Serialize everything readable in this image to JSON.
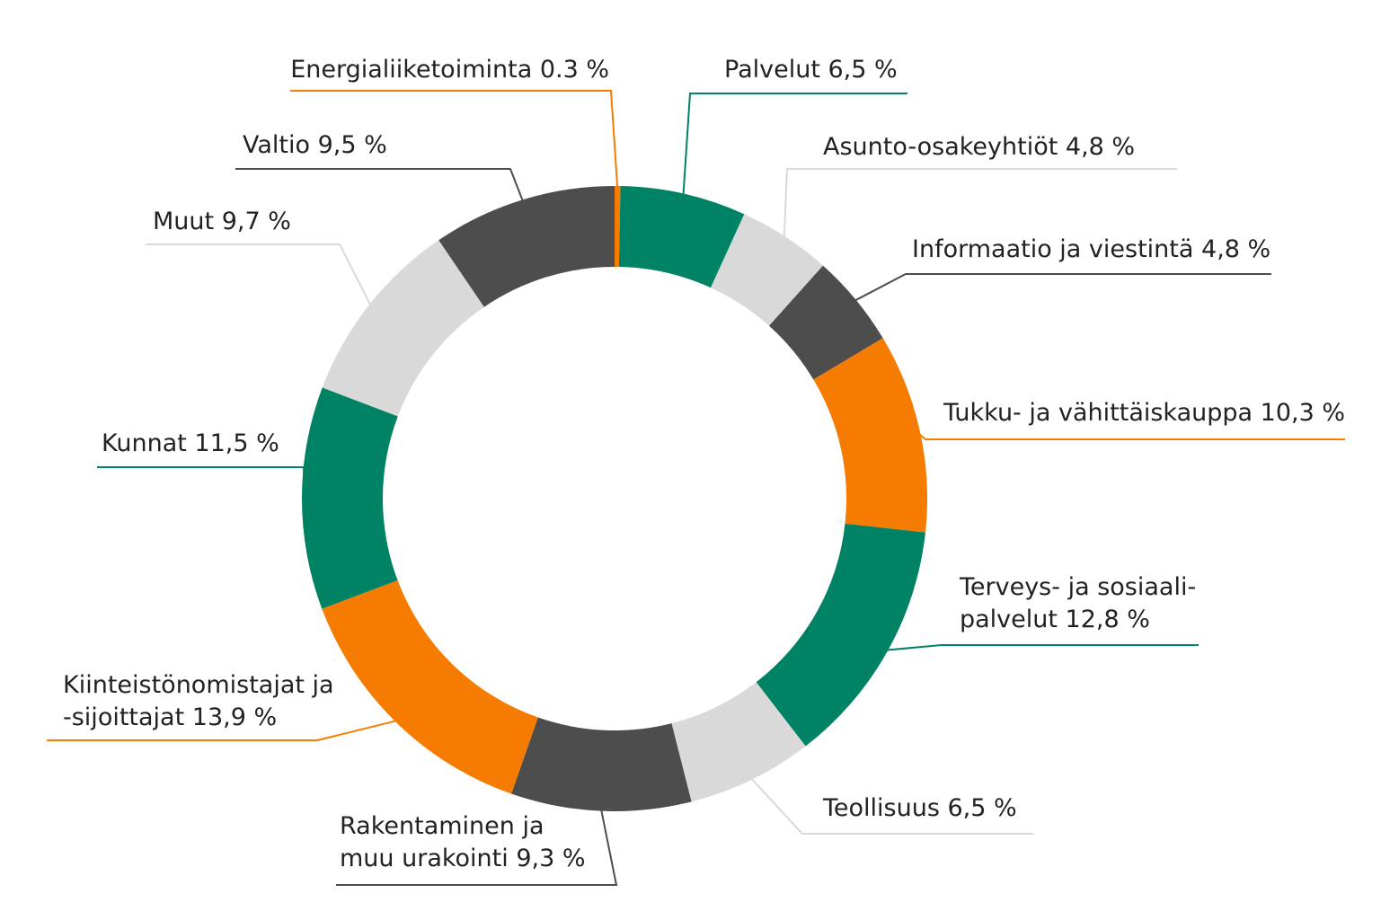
{
  "chart_data": {
    "type": "pie",
    "variant": "donut",
    "slices": [
      {
        "label": "Energialiiketoiminta 0.3 %",
        "value": 0.3,
        "color": "#F57C00"
      },
      {
        "label": "Palvelut 6,5 %",
        "value": 6.5,
        "color": "#008264"
      },
      {
        "label": "Asunto-osakeyhtiöt 4,8 %",
        "value": 4.8,
        "color": "#D9D9D9"
      },
      {
        "label": "Informaatio ja viestintä 4,8 %",
        "value": 4.8,
        "color": "#4D4D4D"
      },
      {
        "label": "Tukku- ja vähittäiskauppa 10,3 %",
        "value": 10.3,
        "color": "#F57C00"
      },
      {
        "label": "Terveys- ja sosiaali-\npalvelut 12,8 %",
        "value": 12.8,
        "color": "#008264"
      },
      {
        "label": "Teollisuus 6,5 %",
        "value": 6.5,
        "color": "#D9D9D9"
      },
      {
        "label": "Rakentaminen ja\nmuu urakointi 9,3 %",
        "value": 9.3,
        "color": "#4D4D4D"
      },
      {
        "label": "Kiinteistönomistajat ja\n-sijoittajat 13,9 %",
        "value": 13.9,
        "color": "#F57C00"
      },
      {
        "label": "Kunnat 11,5 %",
        "value": 11.5,
        "color": "#008264"
      },
      {
        "label": "Muut 9,7 %",
        "value": 9.7,
        "color": "#D9D9D9"
      },
      {
        "label": "Valtio 9,5 %",
        "value": 9.5,
        "color": "#4D4D4D"
      }
    ]
  }
}
